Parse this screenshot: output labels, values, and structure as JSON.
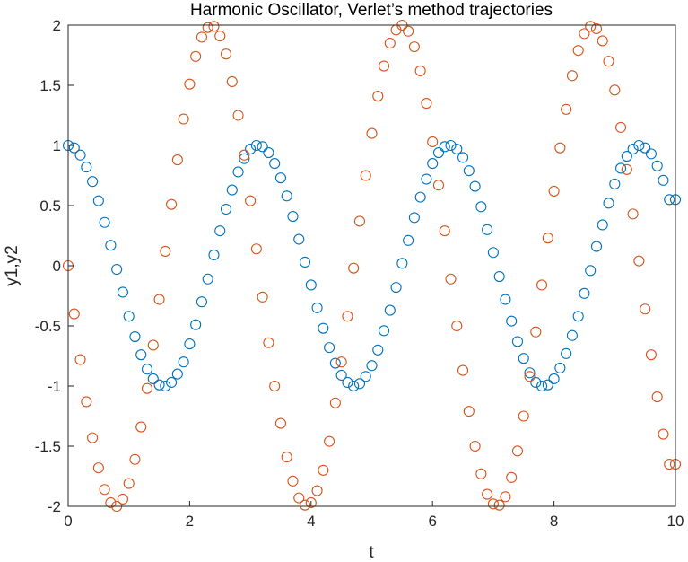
{
  "chart_data": {
    "type": "scatter",
    "title": "Harmonic Oscillator, Verlet’s method trajectories",
    "xlabel": "t",
    "ylabel": "y1,y2",
    "xlim": [
      0,
      10
    ],
    "ylim": [
      -2,
      2
    ],
    "x_ticks": [
      "0",
      "2",
      "4",
      "6",
      "8",
      "10"
    ],
    "y_ticks": [
      "2",
      "1.5",
      "1",
      "0.5",
      "0",
      "-0.5",
      "-1",
      "-1.5",
      "-2"
    ],
    "grid": false,
    "marker": "circle",
    "series": [
      {
        "color": "#0072BD",
        "x": [
          0,
          0.1,
          0.2,
          0.3,
          0.4,
          0.5,
          0.6,
          0.7,
          0.8,
          0.9,
          1,
          1.1,
          1.2,
          1.3,
          1.4,
          1.5,
          1.6,
          1.7,
          1.8,
          1.9,
          2,
          2.1,
          2.2,
          2.3,
          2.4,
          2.5,
          2.6,
          2.7,
          2.8,
          2.9,
          3,
          3.1,
          3.2,
          3.3,
          3.4,
          3.5,
          3.6,
          3.7,
          3.8,
          3.9,
          4,
          4.1,
          4.2,
          4.3,
          4.4,
          4.5,
          4.6,
          4.7,
          4.8,
          4.9,
          5,
          5.1,
          5.2,
          5.3,
          5.4,
          5.5,
          5.6,
          5.7,
          5.8,
          5.9,
          6,
          6.1,
          6.2,
          6.3,
          6.4,
          6.5,
          6.6,
          6.7,
          6.8,
          6.9,
          7,
          7.1,
          7.2,
          7.3,
          7.4,
          7.5,
          7.6,
          7.7,
          7.8,
          7.9,
          8,
          8.1,
          8.2,
          8.3,
          8.4,
          8.5,
          8.6,
          8.7,
          8.8,
          8.9,
          9,
          9.1,
          9.2,
          9.3,
          9.4,
          9.5,
          9.6,
          9.7,
          9.8,
          9.9,
          10
        ],
        "y": [
          1,
          0.98,
          0.92,
          0.82,
          0.7,
          0.54,
          0.36,
          0.17,
          -0.03,
          -0.22,
          -0.42,
          -0.59,
          -0.74,
          -0.86,
          -0.94,
          -0.99,
          -1,
          -0.97,
          -0.9,
          -0.8,
          -0.65,
          -0.49,
          -0.3,
          -0.11,
          0.09,
          0.29,
          0.47,
          0.63,
          0.78,
          0.89,
          0.97,
          1,
          0.99,
          0.94,
          0.85,
          0.73,
          0.58,
          0.41,
          0.22,
          0.03,
          -0.16,
          -0.35,
          -0.52,
          -0.68,
          -0.81,
          -0.91,
          -0.97,
          -1,
          -0.98,
          -0.92,
          -0.83,
          -0.7,
          -0.54,
          -0.37,
          -0.18,
          0.02,
          0.21,
          0.4,
          0.57,
          0.72,
          0.85,
          0.94,
          0.99,
          1,
          0.97,
          0.9,
          0.79,
          0.66,
          0.49,
          0.3,
          0.11,
          -0.09,
          -0.28,
          -0.46,
          -0.63,
          -0.77,
          -0.89,
          -0.97,
          -1,
          -0.99,
          -0.94,
          -0.85,
          -0.73,
          -0.58,
          -0.42,
          -0.23,
          -0.04,
          0.16,
          0.34,
          0.52,
          0.68,
          0.81,
          0.91,
          0.97,
          1,
          0.98,
          0.93,
          0.83,
          0.71,
          0.55,
          0.55
        ]
      },
      {
        "color": "#D95319",
        "x": [
          0,
          0.1,
          0.2,
          0.3,
          0.4,
          0.5,
          0.6,
          0.7,
          0.8,
          0.9,
          1,
          1.1,
          1.2,
          1.3,
          1.4,
          1.5,
          1.6,
          1.7,
          1.8,
          1.9,
          2,
          2.1,
          2.2,
          2.3,
          2.4,
          2.5,
          2.6,
          2.7,
          2.8,
          2.9,
          3,
          3.1,
          3.2,
          3.3,
          3.4,
          3.5,
          3.6,
          3.7,
          3.8,
          3.9,
          4,
          4.1,
          4.2,
          4.3,
          4.4,
          4.5,
          4.6,
          4.7,
          4.8,
          4.9,
          5,
          5.1,
          5.2,
          5.3,
          5.4,
          5.5,
          5.6,
          5.7,
          5.8,
          5.9,
          6,
          6.1,
          6.2,
          6.3,
          6.4,
          6.5,
          6.6,
          6.7,
          6.8,
          6.9,
          7,
          7.1,
          7.2,
          7.3,
          7.4,
          7.5,
          7.6,
          7.7,
          7.8,
          7.9,
          8,
          8.1,
          8.2,
          8.3,
          8.4,
          8.5,
          8.6,
          8.7,
          8.8,
          8.9,
          9,
          9.1,
          9.2,
          9.3,
          9.4,
          9.5,
          9.6,
          9.7,
          9.8,
          9.9,
          10
        ],
        "y": [
          0,
          -0.4,
          -0.78,
          -1.13,
          -1.43,
          -1.68,
          -1.86,
          -1.97,
          -2,
          -1.94,
          -1.81,
          -1.61,
          -1.34,
          -1.02,
          -0.66,
          -0.28,
          0.12,
          0.51,
          0.88,
          1.22,
          1.51,
          1.74,
          1.9,
          1.98,
          1.99,
          1.91,
          1.76,
          1.53,
          1.25,
          0.92,
          0.54,
          0.14,
          -0.26,
          -0.64,
          -1,
          -1.31,
          -1.59,
          -1.79,
          -1.93,
          -1.99,
          -1.97,
          -1.87,
          -1.7,
          -1.46,
          -1.14,
          -0.8,
          -0.42,
          -0.02,
          0.37,
          0.75,
          1.1,
          1.41,
          1.66,
          1.85,
          1.96,
          2,
          1.95,
          1.82,
          1.62,
          1.35,
          1.03,
          0.67,
          0.29,
          -0.11,
          -0.5,
          -0.87,
          -1.21,
          -1.5,
          -1.73,
          -1.9,
          -1.98,
          -1.99,
          -1.92,
          -1.76,
          -1.54,
          -1.25,
          -0.92,
          -0.55,
          -0.16,
          0.23,
          0.62,
          0.98,
          1.3,
          1.58,
          1.79,
          1.93,
          1.99,
          1.97,
          1.87,
          1.7,
          1.46,
          1.15,
          0.8,
          0.43,
          0.04,
          -0.36,
          -0.74,
          -1.09,
          -1.4,
          -1.65,
          -1.65
        ]
      }
    ]
  }
}
